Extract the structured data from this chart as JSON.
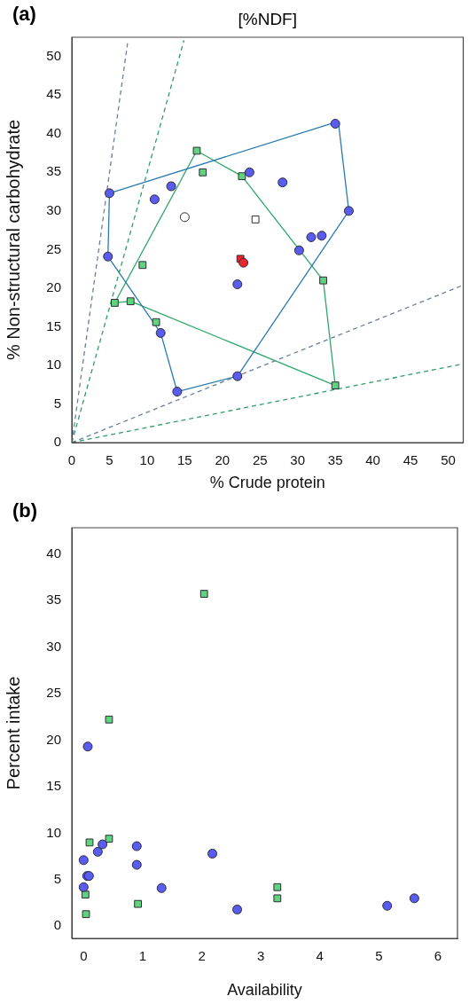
{
  "chart_data": [
    {
      "type": "scatter",
      "title": "[%NDF]",
      "xlabel": "% Crude protein",
      "ylabel": "% Non-structural carbohydrate",
      "annotations": [
        "(a)"
      ],
      "xlim": [
        0,
        52
      ],
      "ylim": [
        0,
        52.5
      ],
      "xticks": [
        0,
        5,
        10,
        15,
        20,
        25,
        30,
        35,
        40,
        45,
        50
      ],
      "yticks": [
        0,
        5,
        10,
        15,
        20,
        25,
        30,
        35,
        40,
        45,
        50
      ],
      "series": [
        {
          "type": "line",
          "color": "#6b7f9c",
          "line_style": "dashed",
          "marker": "none",
          "x": [
            0,
            7.4
          ],
          "values": [
            0,
            51.7
          ]
        },
        {
          "type": "line",
          "color": "#2f9c6c",
          "line_style": "dashed",
          "marker": "none",
          "x": [
            0,
            14.9
          ],
          "values": [
            0,
            52.1
          ]
        },
        {
          "type": "line",
          "color": "#6b7f9c",
          "line_style": "dashed",
          "marker": "none",
          "x": [
            0,
            52
          ],
          "values": [
            0,
            20.4
          ]
        },
        {
          "type": "line",
          "color": "#2f9c6c",
          "line_style": "dashed",
          "marker": "none",
          "x": [
            0,
            52
          ],
          "values": [
            0,
            10.2
          ]
        },
        {
          "type": "line",
          "color": "#2a7bb0",
          "line_style": "solid",
          "marker": "none",
          "x": [
            4.8,
            5,
            35.4,
            36.8
          ],
          "values": [
            24.1,
            32.3,
            41.6,
            30
          ]
        },
        {
          "type": "line",
          "color": "#2a7bb0",
          "line_style": "solid",
          "marker": "none",
          "x": [
            4.8,
            11.8,
            14,
            22,
            36.8
          ],
          "values": [
            24.1,
            14.2,
            6.6,
            8.6,
            30
          ]
        },
        {
          "type": "line",
          "color": "#2ea868",
          "line_style": "solid",
          "marker": "none",
          "x": [
            5.7,
            16.6,
            22.6,
            33.4,
            35
          ],
          "values": [
            18.1,
            37.8,
            34.5,
            21,
            7.4
          ]
        },
        {
          "type": "line",
          "color": "#2ea868",
          "line_style": "solid",
          "marker": "none",
          "x": [
            5.7,
            7.8,
            35
          ],
          "values": [
            18.1,
            18.3,
            7.4
          ]
        },
        {
          "color": "#5a5cf0",
          "marker": "circle",
          "x": [
            5,
            35,
            36.8,
            22,
            14,
            11.8,
            4.8,
            11,
            13.2,
            23.6,
            28,
            31.8,
            33.2,
            30.2,
            22
          ],
          "values": [
            32.3,
            41.3,
            30,
            8.6,
            6.6,
            14.2,
            24.1,
            31.5,
            33.2,
            35,
            33.7,
            26.6,
            26.8,
            24.9,
            20.5
          ]
        },
        {
          "color": "#5fd47c",
          "marker": "square",
          "x": [
            16.6,
            17.4,
            22.6,
            33.4,
            35,
            11.2,
            7.8,
            5.7,
            9.4
          ],
          "values": [
            37.8,
            35,
            34.5,
            21,
            7.4,
            15.6,
            18.3,
            18.1,
            23
          ]
        },
        {
          "color": "#ffffff",
          "marker": "circle",
          "x": [
            15
          ],
          "values": [
            29.2
          ]
        },
        {
          "color": "#ffffff",
          "marker": "square",
          "x": [
            24.4
          ],
          "values": [
            28.9
          ]
        },
        {
          "color": "#e8262b",
          "marker": "circle",
          "x": [
            22.8
          ],
          "values": [
            23.3
          ]
        },
        {
          "color": "#e8262b",
          "marker": "square",
          "x": [
            22.4
          ],
          "values": [
            23.8
          ]
        }
      ]
    },
    {
      "type": "scatter",
      "xlabel": "Availability",
      "ylabel": "Percent intake",
      "annotations": [
        "(b)"
      ],
      "xlim": [
        -0.2,
        6.33
      ],
      "ylim": [
        -1.3,
        42.8
      ],
      "xticks": [
        0,
        1,
        2,
        3,
        4,
        5,
        6
      ],
      "yticks": [
        0,
        5,
        10,
        15,
        20,
        25,
        30,
        35,
        40
      ],
      "series": [
        {
          "color": "#5a5cf0",
          "marker": "circle",
          "x": [
            0.07,
            0,
            0,
            0.06,
            0.09,
            0.24,
            0.32,
            0.9,
            0.9,
            1.32,
            2.18,
            2.6,
            5.14,
            5.6
          ],
          "values": [
            19.3,
            7.1,
            4.2,
            5.4,
            5.4,
            8.0,
            8.8,
            8.6,
            6.6,
            4.1,
            7.8,
            1.8,
            2.2,
            3.0
          ]
        },
        {
          "color": "#5fd47c",
          "marker": "square",
          "x": [
            2.04,
            0.43,
            0.1,
            0.43,
            0.03,
            0.04,
            0.92,
            3.28,
            3.28
          ],
          "values": [
            35.7,
            22.2,
            9.0,
            9.4,
            3.4,
            1.3,
            2.4,
            4.2,
            3.0
          ]
        }
      ]
    }
  ]
}
